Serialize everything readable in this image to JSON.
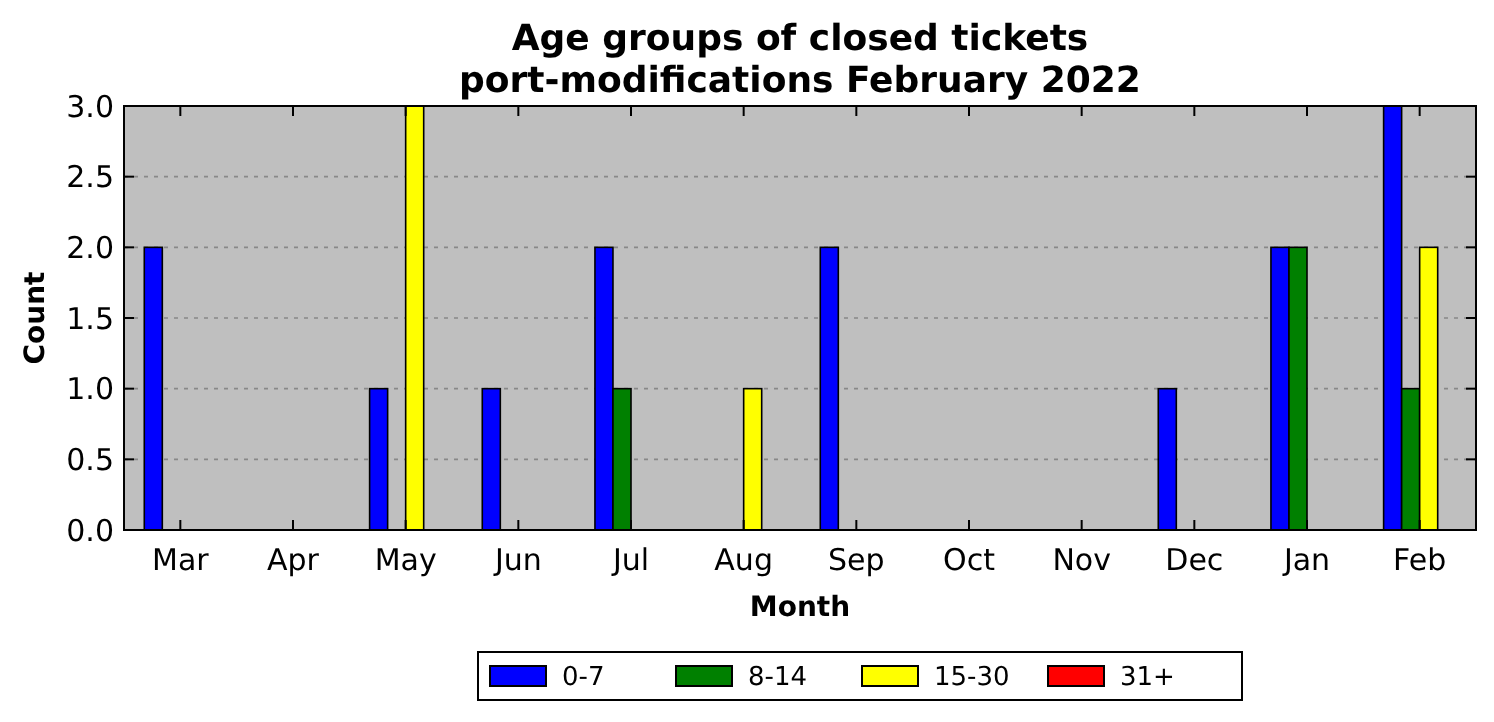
{
  "chart_data": {
    "type": "bar",
    "title": "Age groups of closed tickets\nport-modifications February 2022",
    "xlabel": "Month",
    "ylabel": "Count",
    "categories": [
      "Mar",
      "Apr",
      "May",
      "Jun",
      "Jul",
      "Aug",
      "Sep",
      "Oct",
      "Nov",
      "Dec",
      "Jan",
      "Feb"
    ],
    "series": [
      {
        "name": "0-7",
        "color": "#0000ff",
        "values": [
          2,
          0,
          1,
          1,
          2,
          0,
          2,
          0,
          0,
          1,
          2,
          3
        ]
      },
      {
        "name": "8-14",
        "color": "#008000",
        "values": [
          0,
          0,
          0,
          0,
          1,
          0,
          0,
          0,
          0,
          0,
          2,
          1
        ]
      },
      {
        "name": "15-30",
        "color": "#ffff00",
        "values": [
          0,
          0,
          3,
          0,
          0,
          1,
          0,
          0,
          0,
          0,
          0,
          2
        ]
      },
      {
        "name": "31+",
        "color": "#ff0000",
        "values": [
          0,
          0,
          0,
          0,
          0,
          0,
          0,
          0,
          0,
          0,
          0,
          0
        ]
      }
    ],
    "ylim": [
      0,
      3
    ],
    "yticks": [
      {
        "value": 0,
        "label": "0.0"
      },
      {
        "value": 0.5,
        "label": "0.5"
      },
      {
        "value": 1,
        "label": "1.0"
      },
      {
        "value": 1.5,
        "label": "1.5"
      },
      {
        "value": 2,
        "label": "2.0"
      },
      {
        "value": 2.5,
        "label": "2.5"
      },
      {
        "value": 3,
        "label": "3.0"
      }
    ],
    "grid": "y",
    "legend": "bottom"
  }
}
